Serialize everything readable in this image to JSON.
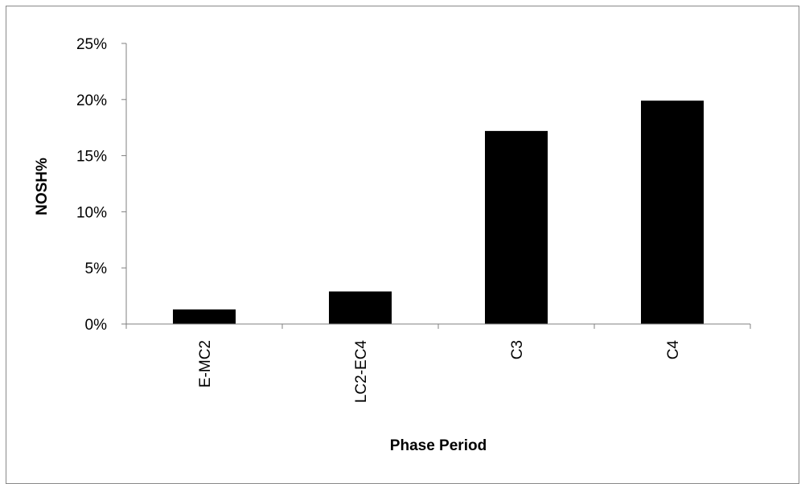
{
  "chart_data": {
    "type": "bar",
    "categories": [
      "E-MC2",
      "LC2-EC4",
      "C3",
      "C4"
    ],
    "values": [
      0.013,
      0.029,
      0.172,
      0.199
    ],
    "ylim": [
      0,
      0.25
    ],
    "yticks": [
      0,
      0.05,
      0.1,
      0.15,
      0.2,
      0.25
    ],
    "ytick_labels": [
      "0%",
      "5%",
      "10%",
      "15%",
      "20%",
      "25%"
    ],
    "xlabel": "Phase Period",
    "ylabel": "NOSH%",
    "title": "",
    "grid": false,
    "legend": "none",
    "bar_color": "#000000"
  }
}
